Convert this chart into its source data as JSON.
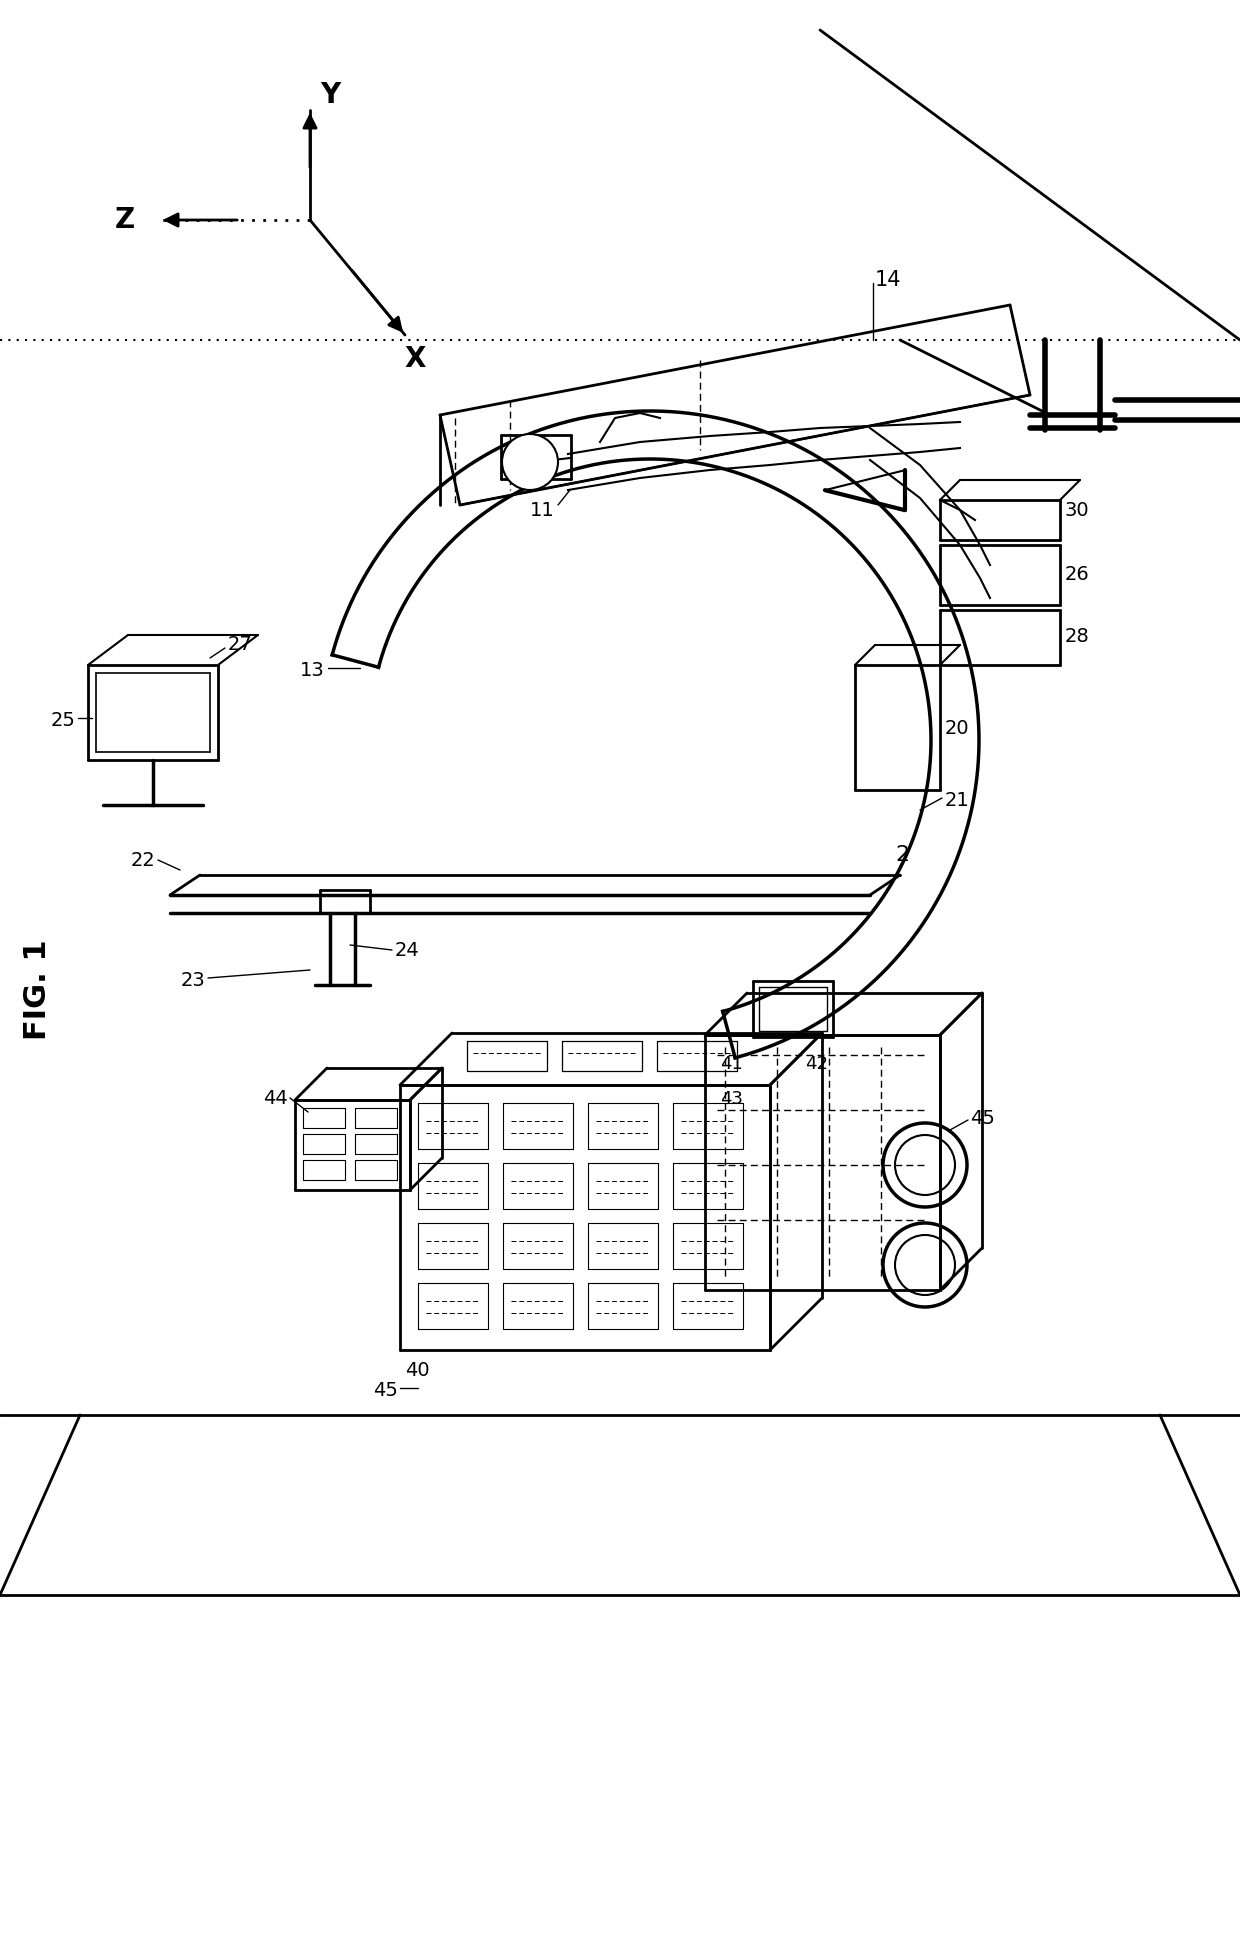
{
  "background_color": "#ffffff",
  "line_color": "#000000",
  "fig_width": 12.4,
  "fig_height": 19.36,
  "labels": {
    "fig_label": "FIG. 1",
    "Y": "Y",
    "Z": "Z",
    "X": "X",
    "n11": "11",
    "n13": "13",
    "n14": "14",
    "n20": "20",
    "n21": "21",
    "n22": "22",
    "n23": "23",
    "n24": "24",
    "n25": "25",
    "n26": "26",
    "n27": "27",
    "n28": "28",
    "n30": "30",
    "n40": "40",
    "n41": "41",
    "n42": "42",
    "n43": "43",
    "n44": "44",
    "n45a": "45",
    "n45b": "45",
    "n2": "2"
  }
}
